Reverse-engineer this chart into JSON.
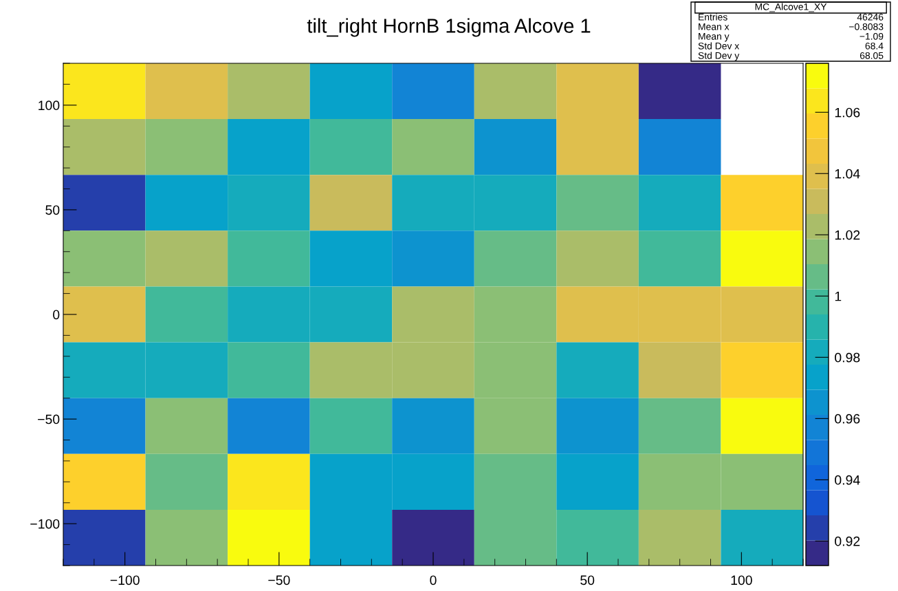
{
  "chart_data": {
    "type": "heatmap",
    "title": "tilt_right HornB 1sigma Alcove 1",
    "x": [
      -106.67,
      -80,
      -53.33,
      -26.67,
      0,
      26.67,
      53.33,
      80,
      106.67
    ],
    "y": [
      106.67,
      80,
      53.33,
      26.67,
      0,
      -26.67,
      -53.33,
      -80,
      -106.67
    ],
    "xlim": [
      -120,
      120
    ],
    "ylim": [
      -120,
      120
    ],
    "xticks": [
      {
        "value": -100,
        "label": "−100"
      },
      {
        "value": -50,
        "label": "−50"
      },
      0,
      50,
      100
    ],
    "yticks": [
      {
        "value": -100,
        "label": "−100"
      },
      {
        "value": -50,
        "label": "−50"
      },
      0,
      50,
      100
    ],
    "cells": [
      [
        1.062,
        1.042,
        1.022,
        0.975,
        0.955,
        1.022,
        1.042,
        0.916,
        null
      ],
      [
        1.022,
        1.014,
        0.975,
        0.998,
        1.014,
        0.966,
        1.042,
        0.955,
        null
      ],
      [
        0.925,
        0.975,
        0.985,
        1.034,
        0.985,
        0.985,
        1.006,
        0.985,
        1.055
      ],
      [
        1.014,
        1.022,
        0.998,
        0.975,
        0.966,
        1.006,
        1.022,
        0.998,
        1.072
      ],
      [
        1.042,
        0.998,
        0.985,
        0.985,
        1.022,
        1.014,
        1.042,
        1.042,
        1.042
      ],
      [
        0.985,
        0.985,
        0.998,
        1.022,
        1.022,
        1.014,
        0.985,
        1.034,
        1.055
      ],
      [
        0.955,
        1.014,
        0.955,
        0.998,
        0.966,
        1.014,
        0.966,
        1.006,
        1.072
      ],
      [
        1.055,
        1.006,
        1.062,
        0.975,
        0.975,
        1.006,
        0.975,
        1.014,
        1.014
      ],
      [
        0.925,
        1.014,
        1.072,
        0.975,
        0.916,
        1.006,
        0.998,
        1.022,
        0.985
      ]
    ],
    "clim": [
      0.912,
      1.076
    ],
    "cticks": [
      0.92,
      0.94,
      0.96,
      0.98,
      1,
      1.02,
      1.04,
      1.06
    ],
    "annotations": [
      "MC_Alcove1_XY",
      "Entries",
      "46246",
      "Mean x",
      "−0.8083",
      "Mean y",
      "−1.09",
      "Std Dev x",
      "68.4",
      "Std Dev y",
      "68.05"
    ]
  }
}
